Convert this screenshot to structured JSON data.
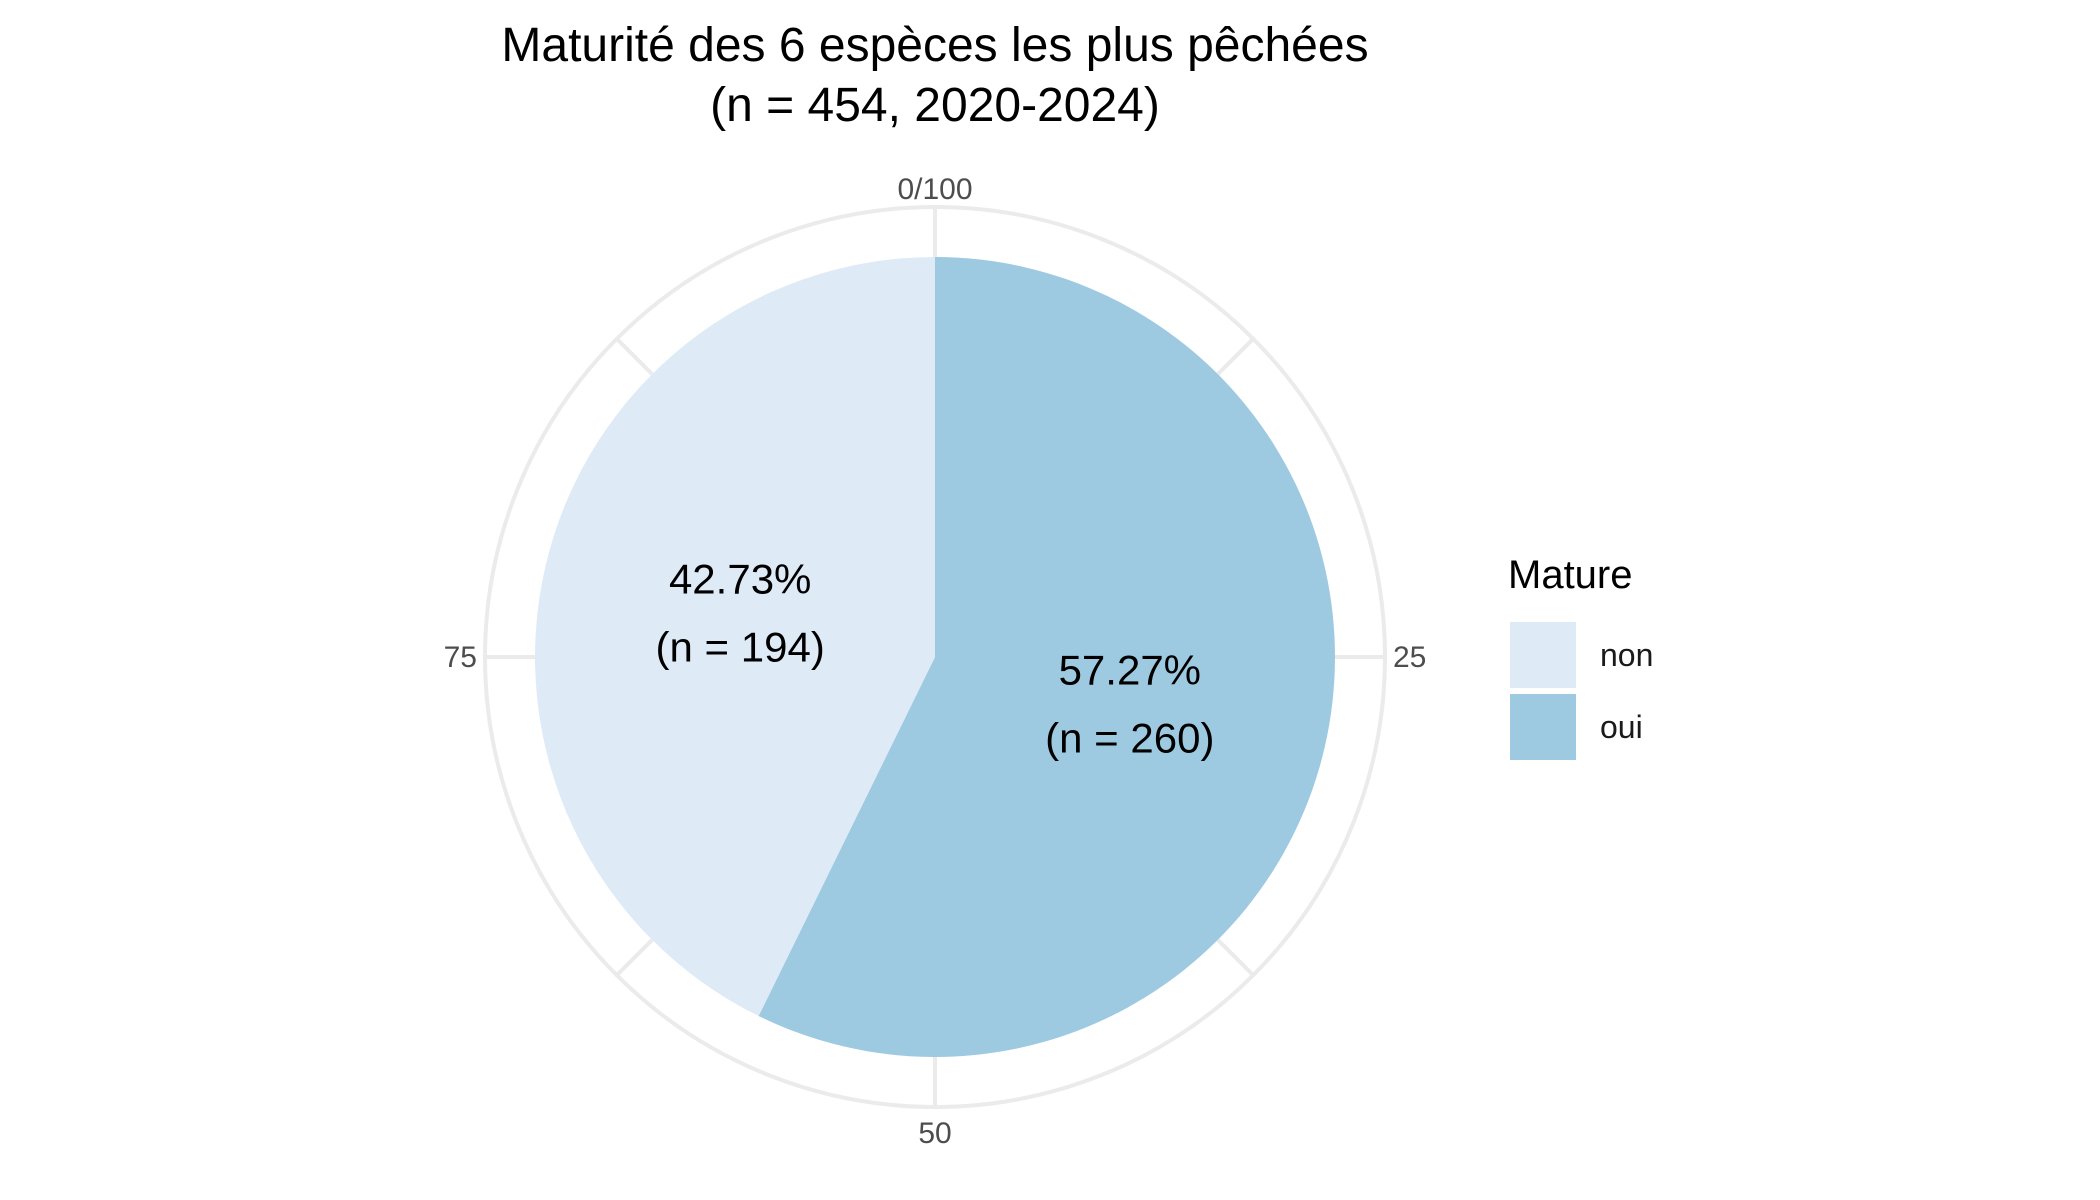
{
  "chart_data": {
    "type": "pie",
    "title": "Maturité des 6 espèces les plus pêchées",
    "subtitle": "(n = 454, 2020-2024)",
    "legend": {
      "title": "Mature",
      "placement": "right"
    },
    "angular_ticks": [
      "0/100",
      "25",
      "50",
      "75"
    ],
    "slices": [
      {
        "label": "oui",
        "value": 260,
        "percent": 57.27,
        "percent_text": "57.27%",
        "count_text": "(n = 260)",
        "color": "#9ECAE1"
      },
      {
        "label": "non",
        "value": 194,
        "percent": 42.73,
        "percent_text": "42.73%",
        "count_text": "(n = 194)",
        "color": "#DEEBF7"
      }
    ],
    "total": 454,
    "grid": true
  }
}
